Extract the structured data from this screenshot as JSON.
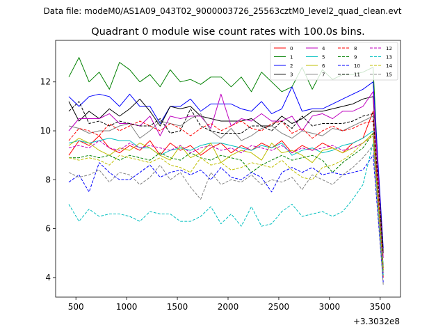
{
  "header": {
    "super_title": "Data file: modeM0/AS1A09_043T02_9000003726_25563cztM0_level2_quad_clean.evt"
  },
  "chart_data": {
    "type": "line",
    "title": "Quadrant 0 module wise count rates with 100.0s bins.",
    "xlabel": "",
    "ylabel": "",
    "x_offset_label": "+3.3032e8",
    "xlim": [
      300,
      3700
    ],
    "ylim": [
      3.2,
      13.7
    ],
    "x_ticks": [
      500,
      1000,
      1500,
      2000,
      2500,
      3000,
      3500
    ],
    "y_ticks": [
      4,
      6,
      8,
      10,
      12
    ],
    "grid": false,
    "legend_position": "top-right",
    "x": [
      430,
      530,
      630,
      730,
      830,
      930,
      1030,
      1130,
      1230,
      1330,
      1430,
      1530,
      1630,
      1730,
      1830,
      1930,
      2030,
      2130,
      2230,
      2330,
      2430,
      2530,
      2630,
      2730,
      2830,
      2930,
      3030,
      3130,
      3230,
      3330,
      3430,
      3530
    ],
    "series": [
      {
        "name": "0",
        "color": "#ff0000",
        "dash": false,
        "values": [
          9.0,
          9.6,
          9.4,
          9.8,
          9.3,
          9.1,
          9.4,
          9.2,
          9.6,
          9.0,
          9.5,
          9.2,
          9.4,
          9.0,
          9.3,
          9.5,
          9.1,
          9.4,
          9.2,
          9.5,
          9.3,
          9.6,
          9.1,
          9.4,
          9.2,
          9.5,
          9.3,
          9.1,
          9.5,
          9.7,
          10.8,
          4.0
        ]
      },
      {
        "name": "1",
        "color": "#008000",
        "dash": false,
        "values": [
          12.2,
          13.0,
          12.0,
          12.4,
          11.7,
          12.8,
          12.5,
          12.0,
          12.3,
          11.8,
          12.5,
          12.0,
          12.1,
          11.9,
          12.2,
          12.2,
          11.8,
          12.2,
          11.6,
          12.4,
          12.0,
          11.6,
          11.8,
          12.6,
          11.7,
          12.5,
          12.1,
          12.3,
          12.3,
          12.4,
          12.6,
          4.3
        ]
      },
      {
        "name": "2",
        "color": "#0000ff",
        "dash": false,
        "values": [
          11.4,
          11.0,
          11.4,
          11.5,
          11.4,
          11.0,
          11.5,
          11.0,
          11.0,
          10.3,
          11.0,
          11.0,
          11.3,
          10.8,
          11.1,
          11.1,
          11.1,
          10.9,
          10.8,
          11.2,
          10.7,
          10.9,
          11.8,
          10.8,
          10.9,
          10.9,
          11.1,
          11.3,
          11.5,
          11.7,
          12.0,
          5.2
        ]
      },
      {
        "name": "3",
        "color": "#000000",
        "dash": false,
        "values": [
          11.2,
          10.4,
          10.8,
          10.5,
          10.9,
          10.6,
          10.9,
          11.3,
          10.8,
          10.2,
          11.0,
          10.9,
          11.0,
          10.6,
          10.5,
          10.4,
          10.4,
          10.4,
          10.5,
          10.2,
          10.2,
          10.6,
          10.3,
          10.5,
          10.8,
          10.8,
          10.9,
          11.0,
          11.1,
          11.3,
          11.4,
          5.0
        ]
      },
      {
        "name": "4",
        "color": "#bf00bf",
        "dash": false,
        "values": [
          10.0,
          10.5,
          10.5,
          10.5,
          10.7,
          10.3,
          10.3,
          10.2,
          10.6,
          9.8,
          10.6,
          10.5,
          10.6,
          10.6,
          10.1,
          11.5,
          10.2,
          10.5,
          10.4,
          10.7,
          10.4,
          10.4,
          10.6,
          10.0,
          10.6,
          10.7,
          10.5,
          10.8,
          10.8,
          11.0,
          11.6,
          4.8
        ]
      },
      {
        "name": "5",
        "color": "#00bfbf",
        "dash": false,
        "values": [
          9.5,
          9.6,
          9.5,
          9.6,
          9.7,
          9.6,
          9.6,
          9.3,
          9.3,
          9.0,
          9.2,
          9.3,
          9.2,
          9.4,
          9.5,
          9.5,
          9.4,
          9.3,
          9.2,
          9.4,
          9.3,
          9.5,
          9.0,
          9.2,
          9.3,
          9.1,
          9.2,
          9.4,
          9.5,
          9.7,
          10.0,
          4.5
        ]
      },
      {
        "name": "6",
        "color": "#bfbf00",
        "dash": false,
        "values": [
          9.4,
          9.7,
          9.5,
          9.2,
          9.0,
          9.3,
          9.2,
          9.5,
          9.3,
          9.0,
          8.8,
          9.4,
          8.9,
          9.1,
          9.5,
          8.7,
          9.0,
          9.2,
          9.1,
          8.8,
          9.5,
          9.1,
          9.2,
          9.0,
          8.7,
          9.2,
          9.3,
          9.1,
          9.3,
          9.5,
          9.9,
          4.1
        ]
      },
      {
        "name": "7",
        "color": "#808080",
        "dash": false,
        "values": [
          10.2,
          10.1,
          9.9,
          10.0,
          10.0,
          10.2,
          10.3,
          9.7,
          10.0,
          10.4,
          10.3,
          10.2,
          10.5,
          10.7,
          10.0,
          9.7,
          10.1,
          9.6,
          9.8,
          10.1,
          10.2,
          9.9,
          9.7,
          10.0,
          9.9,
          9.8,
          10.1,
          10.0,
          10.2,
          10.4,
          10.6,
          4.2
        ]
      },
      {
        "name": "8",
        "color": "#ff0000",
        "dash": true,
        "values": [
          9.6,
          10.1,
          10.0,
          9.8,
          10.3,
          10.0,
          10.2,
          10.4,
          10.2,
          10.0,
          10.3,
          10.1,
          9.8,
          10.1,
          10.3,
          10.0,
          10.2,
          10.4,
          10.1,
          10.0,
          10.3,
          10.4,
          9.9,
          10.1,
          9.7,
          10.0,
          10.2,
          10.0,
          10.1,
          10.3,
          10.4,
          4.4
        ]
      },
      {
        "name": "9",
        "color": "#008000",
        "dash": true,
        "values": [
          8.9,
          8.9,
          9.0,
          8.9,
          9.0,
          8.8,
          9.0,
          8.9,
          8.8,
          9.1,
          8.9,
          8.8,
          9.1,
          8.9,
          8.8,
          9.0,
          8.9,
          8.8,
          8.3,
          8.6,
          8.8,
          9.0,
          8.8,
          8.9,
          9.0,
          8.8,
          8.3,
          8.7,
          9.0,
          9.3,
          9.9,
          4.3
        ]
      },
      {
        "name": "10",
        "color": "#0000ff",
        "dash": true,
        "values": [
          7.9,
          8.2,
          7.5,
          8.7,
          8.3,
          8.0,
          8.0,
          8.3,
          8.6,
          8.1,
          8.3,
          8.4,
          8.2,
          8.4,
          8.0,
          8.5,
          8.1,
          8.0,
          8.3,
          8.1,
          7.5,
          8.3,
          8.5,
          8.3,
          8.5,
          8.2,
          8.3,
          8.2,
          8.3,
          8.4,
          9.0,
          3.8
        ]
      },
      {
        "name": "11",
        "color": "#000000",
        "dash": true,
        "values": [
          10.8,
          11.2,
          10.3,
          10.4,
          10.2,
          10.4,
          10.3,
          10.2,
          10.2,
          10.5,
          9.9,
          10.0,
          10.9,
          10.2,
          10.0,
          9.9,
          9.9,
          9.9,
          10.2,
          10.2,
          10.0,
          10.4,
          10.1,
          10.6,
          10.2,
          10.3,
          10.3,
          10.3,
          10.4,
          10.6,
          10.7,
          5.0
        ]
      },
      {
        "name": "12",
        "color": "#bf00bf",
        "dash": true,
        "values": [
          9.3,
          9.4,
          9.3,
          9.6,
          9.3,
          9.2,
          9.5,
          9.3,
          9.4,
          9.3,
          9.2,
          9.4,
          9.1,
          9.3,
          9.4,
          9.2,
          9.3,
          9.1,
          9.4,
          9.3,
          9.2,
          9.4,
          9.1,
          9.3,
          9.2,
          9.3,
          9.4,
          9.2,
          9.3,
          9.5,
          9.8,
          4.2
        ]
      },
      {
        "name": "13",
        "color": "#00bfbf",
        "dash": true,
        "values": [
          7.0,
          6.3,
          6.8,
          6.5,
          6.6,
          6.6,
          6.5,
          6.3,
          6.7,
          6.6,
          6.6,
          6.3,
          6.3,
          6.5,
          6.9,
          6.2,
          6.6,
          6.1,
          6.9,
          6.1,
          6.2,
          6.7,
          7.0,
          6.5,
          6.6,
          6.7,
          6.5,
          6.7,
          7.2,
          7.8,
          9.5,
          4.1
        ]
      },
      {
        "name": "14",
        "color": "#bfbf00",
        "dash": true,
        "values": [
          8.9,
          8.8,
          8.9,
          8.8,
          8.6,
          9.0,
          8.9,
          8.8,
          8.7,
          8.9,
          8.6,
          8.5,
          8.3,
          8.9,
          8.6,
          8.7,
          8.4,
          8.5,
          8.7,
          8.6,
          8.5,
          8.8,
          8.4,
          8.1,
          8.0,
          8.5,
          8.6,
          8.8,
          9.1,
          9.5,
          9.8,
          4.3
        ]
      },
      {
        "name": "15",
        "color": "#808080",
        "dash": true,
        "values": [
          8.3,
          8.1,
          8.2,
          8.4,
          7.9,
          8.3,
          8.2,
          7.8,
          8.1,
          8.6,
          8.0,
          8.3,
          7.7,
          7.2,
          8.3,
          7.8,
          8.0,
          7.9,
          8.2,
          7.8,
          8.0,
          7.9,
          8.1,
          7.6,
          8.2,
          8.0,
          7.8,
          8.2,
          8.5,
          8.9,
          9.4,
          3.7
        ]
      }
    ]
  }
}
